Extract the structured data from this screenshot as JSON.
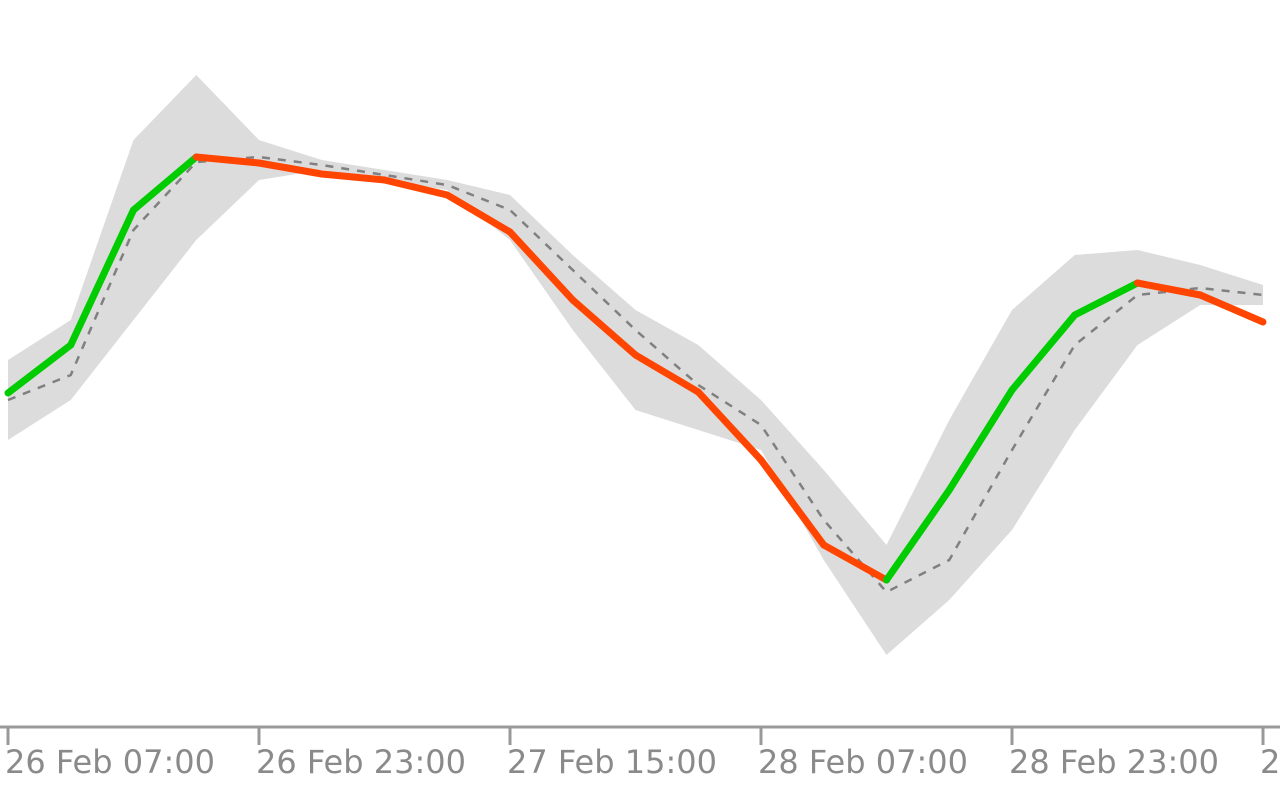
{
  "chart_data": {
    "type": "line",
    "categories": [
      "26 Feb 07:00",
      null,
      null,
      null,
      "26 Feb 23:00",
      null,
      null,
      null,
      "27 Feb 15:00",
      null,
      null,
      null,
      "28 Feb 07:00",
      null,
      null,
      null,
      "28 Feb 23:00",
      null,
      null,
      null,
      "2"
    ],
    "ylim": [
      0,
      800
    ],
    "up_color": "#00cc00",
    "down_color": "#ff4500",
    "ma_color": "#808080",
    "band_color": "#dcdcdc",
    "axis_color": "#999999",
    "line": [
      407,
      455,
      590,
      643,
      637,
      626,
      620,
      605,
      568,
      500,
      445,
      408,
      340,
      255,
      220,
      310,
      410,
      485,
      517,
      505,
      478
    ],
    "ma": [
      400,
      425,
      570,
      638,
      643,
      635,
      625,
      615,
      590,
      530,
      470,
      415,
      375,
      280,
      208,
      240,
      350,
      455,
      505,
      512,
      505
    ],
    "band_upper": [
      440,
      480,
      660,
      725,
      660,
      640,
      630,
      620,
      605,
      545,
      490,
      455,
      400,
      330,
      255,
      380,
      490,
      545,
      550,
      535,
      515
    ],
    "band_lower": [
      360,
      400,
      480,
      560,
      620,
      630,
      620,
      610,
      560,
      470,
      390,
      370,
      350,
      240,
      145,
      200,
      270,
      370,
      455,
      495,
      495
    ]
  }
}
